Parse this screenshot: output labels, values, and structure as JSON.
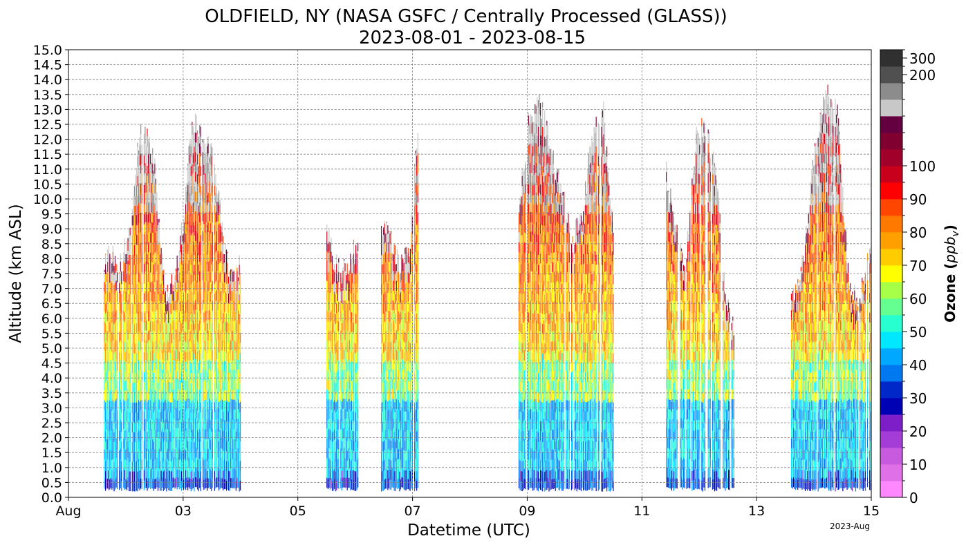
{
  "chart_data": {
    "type": "heatmap",
    "title": "OLDFIELD, NY (NASA GSFC / Centrally Processed (GLASS))",
    "subtitle": "2023-08-01 - 2023-08-15",
    "xlabel": "Datetime (UTC)",
    "ylabel": "Altitude (km ASL)",
    "x_offset_label": "2023-Aug",
    "xlim_days": [
      0,
      14
    ],
    "ylim": [
      0.0,
      15.0
    ],
    "x_ticks": [
      {
        "day": 0,
        "label": "Aug"
      },
      {
        "day": 2,
        "label": "03"
      },
      {
        "day": 4,
        "label": "05"
      },
      {
        "day": 6,
        "label": "07"
      },
      {
        "day": 8,
        "label": "09"
      },
      {
        "day": 10,
        "label": "11"
      },
      {
        "day": 12,
        "label": "13"
      },
      {
        "day": 14,
        "label": "15"
      }
    ],
    "y_ticks": [
      "0.0",
      "0.5",
      "1.0",
      "1.5",
      "2.0",
      "2.5",
      "3.0",
      "3.5",
      "4.0",
      "4.5",
      "5.0",
      "5.5",
      "6.0",
      "6.5",
      "7.0",
      "7.5",
      "8.0",
      "8.5",
      "9.0",
      "9.5",
      "10.0",
      "10.5",
      "11.0",
      "11.5",
      "12.0",
      "12.5",
      "13.0",
      "13.5",
      "14.0",
      "14.5",
      "15.0"
    ],
    "grid": true,
    "colorbar": {
      "label": "Ozone ",
      "unit": "ppb",
      "unit_sub": "v",
      "colors": [
        "#ff88ff",
        "#e070e8",
        "#c85ae0",
        "#a43cd8",
        "#7e1ec8",
        "#0000b4",
        "#0028c8",
        "#0078f0",
        "#00a8ff",
        "#00e8ff",
        "#28ffd0",
        "#64ff90",
        "#a8ff48",
        "#ffff00",
        "#ffcc00",
        "#ffa000",
        "#ff7800",
        "#ff4600",
        "#ff0000",
        "#c8001c",
        "#a0002a",
        "#800030",
        "#640040",
        "#c8c8c8",
        "#8c8c8c",
        "#505050",
        "#303030"
      ],
      "ticks": [
        {
          "level": 0,
          "label": "0"
        },
        {
          "level": 2,
          "label": "10"
        },
        {
          "level": 4,
          "label": "20"
        },
        {
          "level": 6,
          "label": "30"
        },
        {
          "level": 8,
          "label": "40"
        },
        {
          "level": 10,
          "label": "50"
        },
        {
          "level": 12,
          "label": "60"
        },
        {
          "level": 14,
          "label": "70"
        },
        {
          "level": 16,
          "label": "80"
        },
        {
          "level": 18,
          "label": "90"
        },
        {
          "level": 20,
          "label": "100"
        },
        {
          "level": 25,
          "label": "200"
        },
        {
          "level": 26,
          "label": "300"
        }
      ]
    },
    "observation_periods": [
      {
        "start": 0.62,
        "end": 1.72,
        "top_km": [
          7.8,
          8.3,
          7.6,
          8.4,
          9.7,
          12.3,
          12.0,
          11.5,
          8.5,
          6.8
        ]
      },
      {
        "start": 1.72,
        "end": 3.0,
        "top_km": [
          6.9,
          7.3,
          9.5,
          12.7,
          12.3,
          11.8,
          10.9,
          8.3,
          7.3,
          8.0
        ]
      },
      {
        "start": 4.5,
        "end": 5.05,
        "top_km": [
          8.8,
          7.9,
          7.6,
          7.9,
          8.7
        ]
      },
      {
        "start": 5.45,
        "end": 6.1,
        "top_km": [
          9.2,
          8.6,
          7.6,
          8.3,
          12.6
        ]
      },
      {
        "start": 7.85,
        "end": 9.5,
        "top_km": [
          9.8,
          12.7,
          13.3,
          11.6,
          10.5,
          8.6,
          9.3,
          12.3,
          13.1,
          9.0
        ]
      },
      {
        "start": 10.42,
        "end": 11.62,
        "top_km": [
          10.8,
          8.9,
          7.8,
          12.2,
          12.3,
          11.2,
          7.0,
          5.5
        ]
      },
      {
        "start": 12.6,
        "end": 14.0,
        "top_km": [
          6.6,
          7.9,
          11.4,
          13.6,
          13.2,
          7.2,
          6.6,
          8.9
        ]
      }
    ]
  }
}
